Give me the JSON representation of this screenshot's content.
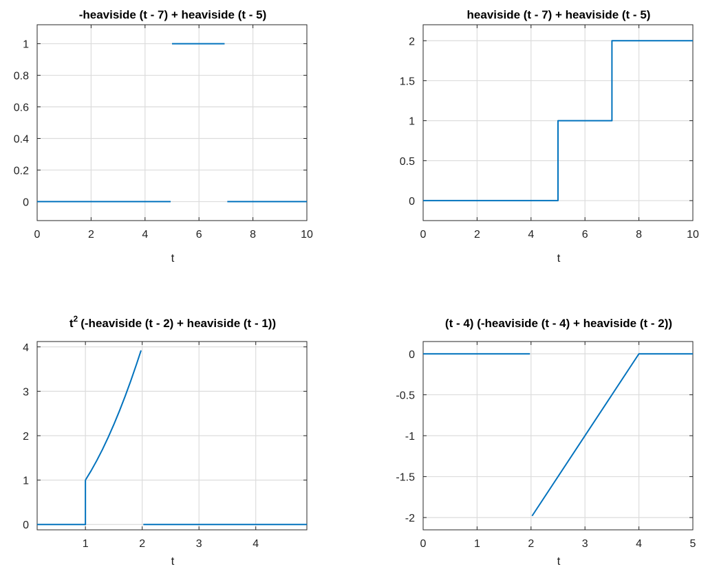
{
  "chart_data": [
    {
      "type": "line",
      "title": "-heaviside (t - 7) + heaviside (t - 5)",
      "xlabel": "t",
      "ylabel": "",
      "xlim": [
        0,
        10
      ],
      "ylim": [
        -0.12,
        1.12
      ],
      "xticks": [
        0,
        2,
        4,
        6,
        8,
        10
      ],
      "xticklabels": [
        "0",
        "2",
        "4",
        "6",
        "8",
        "10"
      ],
      "yticks": [
        0,
        0.2,
        0.4,
        0.6,
        0.8,
        1
      ],
      "yticklabels": [
        "0",
        "0.2",
        "0.4",
        "0.6",
        "0.8",
        "1"
      ],
      "grid": true,
      "color": "#0072bd",
      "segments": [
        [
          [
            0,
            0
          ],
          [
            4.95,
            0
          ]
        ],
        [
          [
            5.0,
            1
          ],
          [
            6.95,
            1
          ]
        ],
        [
          [
            7.05,
            0
          ],
          [
            10,
            0
          ]
        ]
      ]
    },
    {
      "type": "line",
      "title": "heaviside (t - 7) + heaviside (t - 5)",
      "xlabel": "t",
      "ylabel": "",
      "xlim": [
        0,
        10
      ],
      "ylim": [
        -0.25,
        2.2
      ],
      "xticks": [
        0,
        2,
        4,
        6,
        8,
        10
      ],
      "xticklabels": [
        "0",
        "2",
        "4",
        "6",
        "8",
        "10"
      ],
      "yticks": [
        0,
        0.5,
        1,
        1.5,
        2
      ],
      "yticklabels": [
        "0",
        "0.5",
        "1",
        "1.5",
        "2"
      ],
      "grid": true,
      "color": "#0072bd",
      "segments": [
        [
          [
            0,
            0
          ],
          [
            5,
            0
          ],
          [
            5,
            1
          ],
          [
            7,
            1
          ],
          [
            7,
            2
          ],
          [
            10,
            2
          ]
        ]
      ]
    },
    {
      "type": "line",
      "title": "(-heaviside (t - 2) + heaviside (t - 1))",
      "title_prefix": "t",
      "title_superscript": "2",
      "xlabel": "t",
      "ylabel": "",
      "xlim": [
        0.15,
        4.9
      ],
      "ylim": [
        -0.12,
        4.12
      ],
      "xticks": [
        1,
        2,
        3,
        4
      ],
      "xticklabels": [
        "1",
        "2",
        "3",
        "4"
      ],
      "yticks": [
        0,
        1,
        2,
        3,
        4
      ],
      "yticklabels": [
        "0",
        "1",
        "2",
        "3",
        "4"
      ],
      "grid": true,
      "color": "#0072bd",
      "segments": [
        [
          [
            0.15,
            0
          ],
          [
            1,
            0
          ],
          [
            1,
            1
          ]
        ],
        [
          [
            1,
            1
          ],
          [
            1.1,
            1.21
          ],
          [
            1.2,
            1.44
          ],
          [
            1.3,
            1.69
          ],
          [
            1.4,
            1.96
          ],
          [
            1.5,
            2.25
          ],
          [
            1.6,
            2.56
          ],
          [
            1.7,
            2.89
          ],
          [
            1.8,
            3.24
          ],
          [
            1.9,
            3.61
          ],
          [
            1.98,
            3.92
          ]
        ],
        [
          [
            2.02,
            0
          ],
          [
            4.9,
            0
          ]
        ]
      ]
    },
    {
      "type": "line",
      "title": "(t - 4) (-heaviside (t - 4) + heaviside (t - 2))",
      "xlabel": "t",
      "ylabel": "",
      "xlim": [
        0,
        5
      ],
      "ylim": [
        -2.15,
        0.15
      ],
      "xticks": [
        0,
        1,
        2,
        3,
        4,
        5
      ],
      "xticklabels": [
        "0",
        "1",
        "2",
        "3",
        "4",
        "5"
      ],
      "yticks": [
        -2,
        -1.5,
        -1,
        -0.5,
        0
      ],
      "yticklabels": [
        "-2",
        "-1.5",
        "-1",
        "-0.5",
        "0"
      ],
      "grid": true,
      "color": "#0072bd",
      "segments": [
        [
          [
            0,
            0
          ],
          [
            1.98,
            0
          ]
        ],
        [
          [
            2.02,
            -1.98
          ],
          [
            4,
            0
          ],
          [
            5,
            0
          ]
        ]
      ]
    }
  ]
}
